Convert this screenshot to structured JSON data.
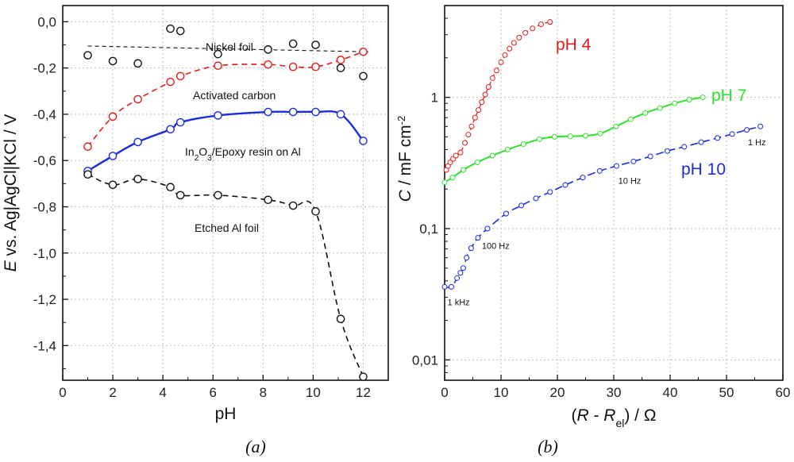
{
  "chart_data": [
    {
      "id": "a",
      "type": "scatter",
      "caption": "(a)",
      "xlabel": "pH",
      "ylabel_parts": {
        "var": "E",
        "rest": " vs. Ag|AgCl|KCl  / V"
      },
      "xlim": [
        0,
        13
      ],
      "ylim": [
        -1.55,
        0.07
      ],
      "xticks": [
        "0",
        "2",
        "4",
        "6",
        "8",
        "10",
        "12"
      ],
      "yticks": [
        "0,0",
        "-0,2",
        "-0,4",
        "-0,6",
        "-0,8",
        "-1,0",
        "-1,2",
        "-1,4"
      ],
      "series": [
        {
          "name": "Nickel foil",
          "color": "#111111",
          "x": [
            1,
            2,
            3,
            4.3,
            4.7,
            6.2,
            8.2,
            9.2,
            10.1,
            11.1,
            12
          ],
          "y": [
            -0.145,
            -0.17,
            -0.18,
            -0.03,
            -0.04,
            -0.14,
            -0.12,
            -0.095,
            -0.1,
            -0.2,
            -0.235
          ],
          "fit": {
            "x": [
              1,
              12.2
            ],
            "y": [
              -0.105,
              -0.13
            ]
          }
        },
        {
          "name": "Activated carbon",
          "color": "#e11b1b",
          "x": [
            1,
            2,
            3,
            4.3,
            4.7,
            6.2,
            8.2,
            9.2,
            10.1,
            11.1,
            12
          ],
          "y": [
            -0.54,
            -0.41,
            -0.335,
            -0.26,
            -0.235,
            -0.19,
            -0.185,
            -0.195,
            -0.195,
            -0.165,
            -0.13
          ]
        },
        {
          "name_main": "In",
          "name_sub": "2",
          "name_main2": "O",
          "name_sub2": "3",
          "name_rest": "/Epoxy resin on Al",
          "color": "#1b2be1",
          "x": [
            1,
            2,
            3,
            4.3,
            4.7,
            6.2,
            8.2,
            9.2,
            10.1,
            11.1,
            12
          ],
          "y": [
            -0.645,
            -0.58,
            -0.52,
            -0.465,
            -0.435,
            -0.405,
            -0.39,
            -0.39,
            -0.39,
            -0.4,
            -0.515
          ]
        },
        {
          "name": "Etched Al foil",
          "color": "#111111",
          "x": [
            1,
            2,
            3,
            4.3,
            4.7,
            6.2,
            8.2,
            9.2,
            10.1,
            11.1,
            12
          ],
          "y": [
            -0.66,
            -0.705,
            -0.68,
            -0.715,
            -0.75,
            -0.75,
            -0.77,
            -0.795,
            -0.82,
            -1.285,
            -1.535
          ]
        }
      ]
    },
    {
      "id": "b",
      "type": "line",
      "caption": "(b)",
      "xlabel_parts": {
        "open": "(",
        "R": "R",
        "mid": " - ",
        "R2": "R",
        "sub": "el",
        "close": ") / Ω"
      },
      "ylabel_parts": {
        "var": "C",
        "rest": " / mF cm",
        "sup": "-2"
      },
      "xlim": [
        0,
        60
      ],
      "ylog": true,
      "ylim": [
        0.007,
        5
      ],
      "xticks": [
        "0",
        "10",
        "20",
        "30",
        "40",
        "50",
        "60"
      ],
      "yticks": [
        {
          "value": 1,
          "label": "1"
        },
        {
          "value": 0.1,
          "label": "0,1"
        },
        {
          "value": 0.01,
          "label": "0,01"
        }
      ],
      "series": [
        {
          "name": "pH 4",
          "color": "#e11b1b",
          "x": [
            0.3,
            0.6,
            1.0,
            1.5,
            2.0,
            2.8,
            3.6,
            4.2,
            4.8,
            5.4,
            6.0,
            6.6,
            7.2,
            7.8,
            8.5,
            9.2,
            10.0,
            10.7,
            11.5,
            12.3,
            13.2,
            14.3,
            15.6,
            17.1,
            18.7
          ],
          "y": [
            0.28,
            0.3,
            0.32,
            0.34,
            0.36,
            0.38,
            0.45,
            0.52,
            0.6,
            0.7,
            0.8,
            0.92,
            1.05,
            1.2,
            1.4,
            1.6,
            1.85,
            2.1,
            2.35,
            2.6,
            2.85,
            3.1,
            3.35,
            3.6,
            3.75
          ],
          "dash": "6,4"
        },
        {
          "name": "pH 7",
          "color": "#2fe02f",
          "x": [
            0,
            1.4,
            3.3,
            5.8,
            8.5,
            11.2,
            14.0,
            16.8,
            19.5,
            22.3,
            25.0,
            27.6,
            30.4,
            33.0,
            35.6,
            38.2,
            40.8,
            43.4,
            45.8
          ],
          "y": [
            0.225,
            0.245,
            0.28,
            0.32,
            0.36,
            0.4,
            0.44,
            0.48,
            0.5,
            0.505,
            0.51,
            0.53,
            0.6,
            0.68,
            0.76,
            0.83,
            0.9,
            0.96,
            1.0
          ],
          "dash": ""
        },
        {
          "name": "pH 10",
          "color": "#1b2be1",
          "x": [
            0,
            1.2,
            2.2,
            2.8,
            3.3,
            3.9,
            4.7,
            5.9,
            7.6,
            10.9,
            13.6,
            16.2,
            18.7,
            21.4,
            24.5,
            27.5,
            30.5,
            33.5,
            36.5,
            39.5,
            42.5,
            45.5,
            48.4,
            51.0,
            53.6,
            56.0
          ],
          "y": [
            0.036,
            0.036,
            0.042,
            0.046,
            0.05,
            0.06,
            0.071,
            0.085,
            0.1,
            0.13,
            0.15,
            0.17,
            0.19,
            0.215,
            0.245,
            0.275,
            0.3,
            0.325,
            0.355,
            0.39,
            0.42,
            0.455,
            0.49,
            0.525,
            0.565,
            0.6
          ],
          "dash": "10,5"
        }
      ],
      "freq_labels": [
        {
          "text": "1 kHz",
          "x": 0.5,
          "y": 0.026
        },
        {
          "text": "100 Hz",
          "x": 6.6,
          "y": 0.07
        },
        {
          "text": "10 Hz",
          "x": 30.8,
          "y": 0.22
        },
        {
          "text": "1 Hz",
          "x": 53.8,
          "y": 0.43
        }
      ]
    }
  ]
}
